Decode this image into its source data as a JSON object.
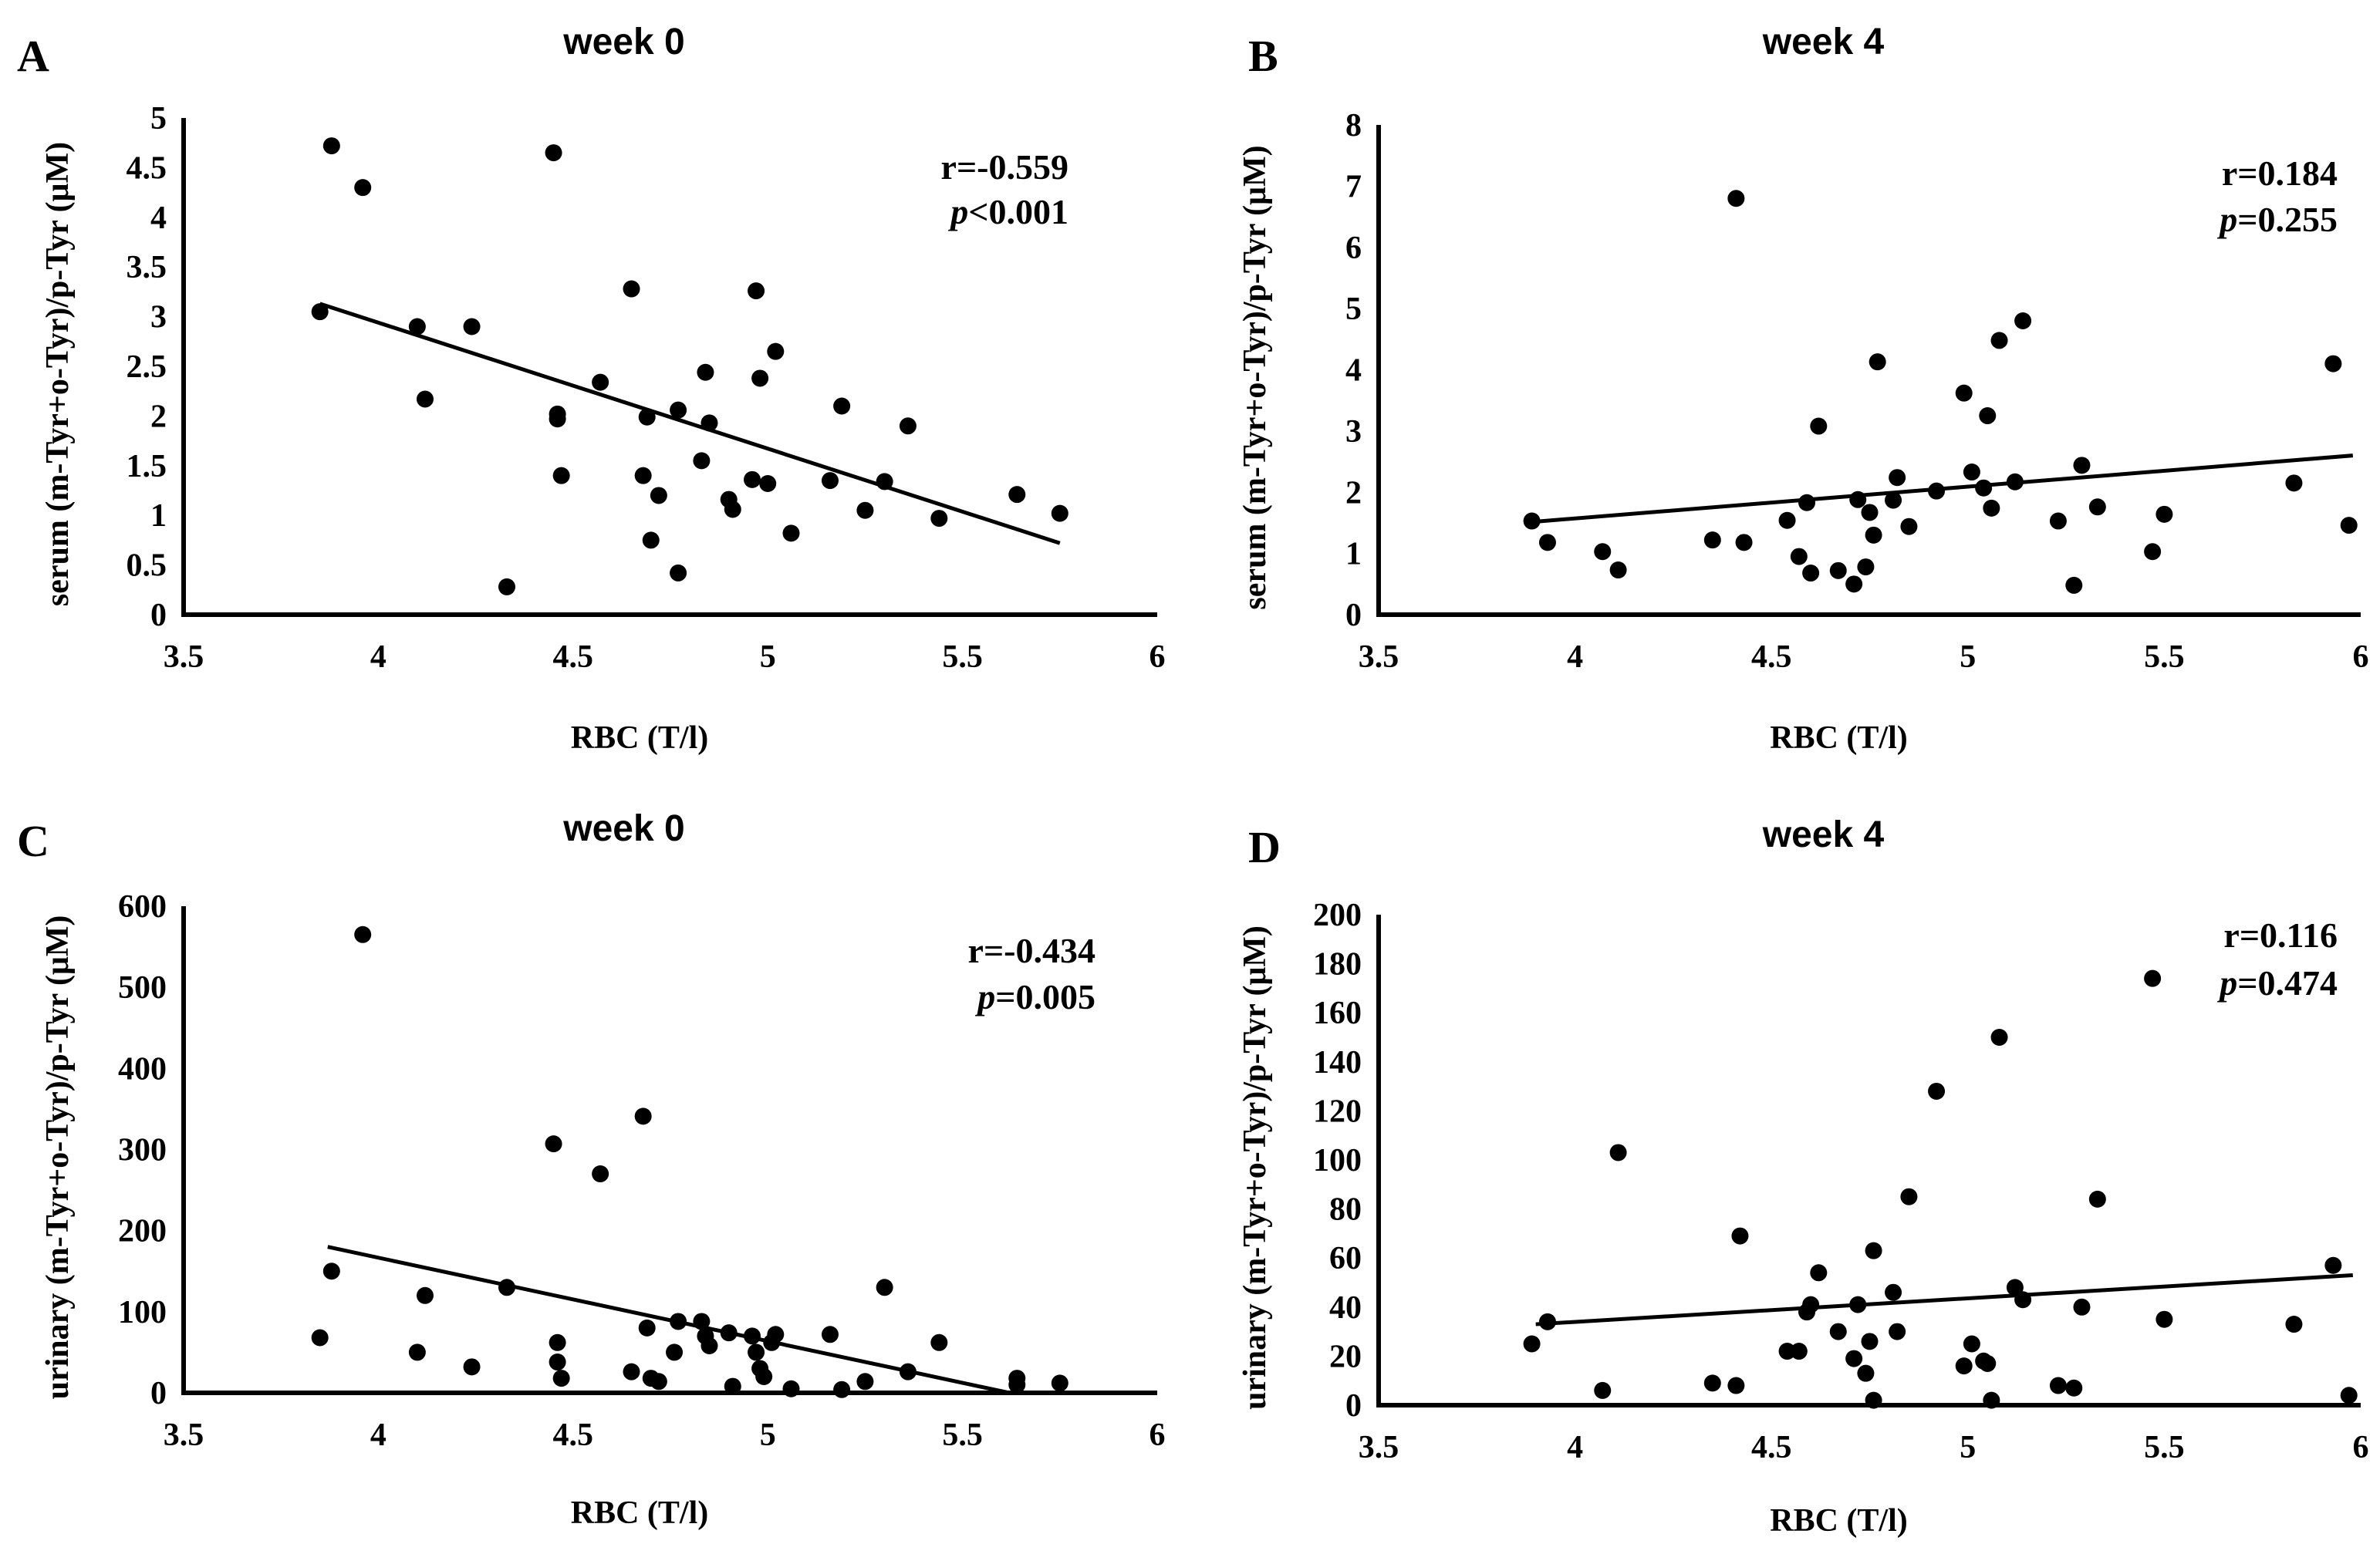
{
  "chart_data": [
    {
      "type": "scatter",
      "panel": "A",
      "title": "week 0",
      "xlabel": "RBC (T/l)",
      "ylabel": "serum (m-Tyr+o-Tyr)/p-Tyr  (μM)",
      "xlim": [
        3.5,
        6
      ],
      "ylim": [
        0,
        5
      ],
      "xticks": [
        "3.5",
        "4",
        "4.5",
        "5",
        "5.5",
        "6"
      ],
      "yticks": [
        "0",
        "0.5",
        "1",
        "1.5",
        "2",
        "2.5",
        "3",
        "3.5",
        "4",
        "4.5",
        "5"
      ],
      "stats": {
        "r_text": "r=-0.559",
        "p_symbol": "p",
        "p_value_text": "<0.001"
      },
      "trendline": {
        "x": [
          3.85,
          5.75
        ],
        "y": [
          3.13,
          0.72
        ]
      },
      "points": [
        {
          "x": 3.85,
          "y": 3.05
        },
        {
          "x": 3.88,
          "y": 4.72
        },
        {
          "x": 3.96,
          "y": 4.3
        },
        {
          "x": 4.1,
          "y": 2.9
        },
        {
          "x": 4.12,
          "y": 2.17
        },
        {
          "x": 4.24,
          "y": 2.9
        },
        {
          "x": 4.33,
          "y": 0.28
        },
        {
          "x": 4.45,
          "y": 4.65
        },
        {
          "x": 4.46,
          "y": 2.02
        },
        {
          "x": 4.46,
          "y": 1.97
        },
        {
          "x": 4.47,
          "y": 1.4
        },
        {
          "x": 4.57,
          "y": 2.34
        },
        {
          "x": 4.65,
          "y": 3.28
        },
        {
          "x": 4.68,
          "y": 1.4
        },
        {
          "x": 4.69,
          "y": 1.99
        },
        {
          "x": 4.7,
          "y": 0.75
        },
        {
          "x": 4.72,
          "y": 1.2
        },
        {
          "x": 4.77,
          "y": 2.06
        },
        {
          "x": 4.77,
          "y": 0.42
        },
        {
          "x": 4.83,
          "y": 1.55
        },
        {
          "x": 4.84,
          "y": 2.44
        },
        {
          "x": 4.85,
          "y": 1.93
        },
        {
          "x": 4.9,
          "y": 1.16
        },
        {
          "x": 4.91,
          "y": 1.06
        },
        {
          "x": 4.96,
          "y": 1.36
        },
        {
          "x": 4.97,
          "y": 3.26
        },
        {
          "x": 4.98,
          "y": 2.38
        },
        {
          "x": 5.0,
          "y": 1.32
        },
        {
          "x": 5.02,
          "y": 2.65
        },
        {
          "x": 5.06,
          "y": 0.82
        },
        {
          "x": 5.16,
          "y": 1.35
        },
        {
          "x": 5.19,
          "y": 2.1
        },
        {
          "x": 5.25,
          "y": 1.05
        },
        {
          "x": 5.3,
          "y": 1.34
        },
        {
          "x": 5.36,
          "y": 1.9
        },
        {
          "x": 5.44,
          "y": 0.97
        },
        {
          "x": 5.64,
          "y": 1.21
        },
        {
          "x": 5.75,
          "y": 1.02
        }
      ]
    },
    {
      "type": "scatter",
      "panel": "B",
      "title": "week 4",
      "xlabel": "RBC (T/l)",
      "ylabel": "serum (m-Tyr+o-Tyr)/p-Tyr  (μM)",
      "xlim": [
        3.5,
        6
      ],
      "ylim": [
        0,
        8
      ],
      "xticks": [
        "3.5",
        "4",
        "4.5",
        "5",
        "5.5",
        "6"
      ],
      "yticks": [
        "0",
        "1",
        "2",
        "3",
        "4",
        "5",
        "6",
        "7",
        "8"
      ],
      "stats": {
        "r_text": "r=0.184",
        "p_symbol": "p",
        "p_value_text": "=0.255"
      },
      "trendline": {
        "x": [
          3.9,
          5.98
        ],
        "y": [
          1.52,
          2.6
        ]
      },
      "points": [
        {
          "x": 3.89,
          "y": 1.53
        },
        {
          "x": 3.93,
          "y": 1.18
        },
        {
          "x": 4.07,
          "y": 1.03
        },
        {
          "x": 4.11,
          "y": 0.73
        },
        {
          "x": 4.35,
          "y": 1.22
        },
        {
          "x": 4.41,
          "y": 6.8
        },
        {
          "x": 4.43,
          "y": 1.18
        },
        {
          "x": 4.54,
          "y": 1.54
        },
        {
          "x": 4.57,
          "y": 0.95
        },
        {
          "x": 4.59,
          "y": 1.83
        },
        {
          "x": 4.6,
          "y": 0.68
        },
        {
          "x": 4.62,
          "y": 3.08
        },
        {
          "x": 4.67,
          "y": 0.72
        },
        {
          "x": 4.71,
          "y": 0.5
        },
        {
          "x": 4.72,
          "y": 1.88
        },
        {
          "x": 4.74,
          "y": 0.78
        },
        {
          "x": 4.75,
          "y": 1.67
        },
        {
          "x": 4.76,
          "y": 1.3
        },
        {
          "x": 4.77,
          "y": 4.13
        },
        {
          "x": 4.81,
          "y": 1.87
        },
        {
          "x": 4.82,
          "y": 2.24
        },
        {
          "x": 4.85,
          "y": 1.44
        },
        {
          "x": 4.92,
          "y": 2.02
        },
        {
          "x": 4.99,
          "y": 3.62
        },
        {
          "x": 5.01,
          "y": 2.33
        },
        {
          "x": 5.04,
          "y": 2.07
        },
        {
          "x": 5.05,
          "y": 3.25
        },
        {
          "x": 5.06,
          "y": 1.74
        },
        {
          "x": 5.08,
          "y": 4.48
        },
        {
          "x": 5.12,
          "y": 2.17
        },
        {
          "x": 5.14,
          "y": 4.8
        },
        {
          "x": 5.23,
          "y": 1.53
        },
        {
          "x": 5.27,
          "y": 0.48
        },
        {
          "x": 5.29,
          "y": 2.44
        },
        {
          "x": 5.33,
          "y": 1.76
        },
        {
          "x": 5.47,
          "y": 1.03
        },
        {
          "x": 5.5,
          "y": 1.64
        },
        {
          "x": 5.83,
          "y": 2.15
        },
        {
          "x": 5.93,
          "y": 4.1
        },
        {
          "x": 5.97,
          "y": 1.46
        }
      ]
    },
    {
      "type": "scatter",
      "panel": "C",
      "title": "week 0",
      "xlabel": "RBC (T/l)",
      "ylabel": "urinary (m-Tyr+o-Tyr)/p-Tyr  (μM)",
      "xlim": [
        3.5,
        6
      ],
      "ylim": [
        0,
        600
      ],
      "xticks": [
        "3.5",
        "4",
        "4.5",
        "5",
        "5.5",
        "6"
      ],
      "yticks": [
        "0",
        "100",
        "200",
        "300",
        "400",
        "500",
        "600"
      ],
      "stats": {
        "r_text": "r=-0.434",
        "p_symbol": "p",
        "p_value_text": "=0.005"
      },
      "trendline": {
        "x": [
          3.87,
          5.62
        ],
        "y": [
          180,
          0
        ]
      },
      "points": [
        {
          "x": 3.85,
          "y": 68
        },
        {
          "x": 3.88,
          "y": 150
        },
        {
          "x": 3.96,
          "y": 565
        },
        {
          "x": 4.1,
          "y": 50
        },
        {
          "x": 4.12,
          "y": 120
        },
        {
          "x": 4.24,
          "y": 32
        },
        {
          "x": 4.33,
          "y": 130
        },
        {
          "x": 4.45,
          "y": 307
        },
        {
          "x": 4.46,
          "y": 62
        },
        {
          "x": 4.46,
          "y": 38
        },
        {
          "x": 4.47,
          "y": 18
        },
        {
          "x": 4.57,
          "y": 270
        },
        {
          "x": 4.65,
          "y": 26
        },
        {
          "x": 4.68,
          "y": 341
        },
        {
          "x": 4.69,
          "y": 80
        },
        {
          "x": 4.7,
          "y": 18
        },
        {
          "x": 4.72,
          "y": 14
        },
        {
          "x": 4.76,
          "y": 50
        },
        {
          "x": 4.77,
          "y": 88
        },
        {
          "x": 4.83,
          "y": 88
        },
        {
          "x": 4.84,
          "y": 70
        },
        {
          "x": 4.85,
          "y": 58
        },
        {
          "x": 4.9,
          "y": 74
        },
        {
          "x": 4.91,
          "y": 8
        },
        {
          "x": 4.96,
          "y": 70
        },
        {
          "x": 4.97,
          "y": 50
        },
        {
          "x": 4.98,
          "y": 30
        },
        {
          "x": 4.99,
          "y": 20
        },
        {
          "x": 5.01,
          "y": 62
        },
        {
          "x": 5.02,
          "y": 72
        },
        {
          "x": 5.06,
          "y": 5
        },
        {
          "x": 5.16,
          "y": 72
        },
        {
          "x": 5.19,
          "y": 4
        },
        {
          "x": 5.25,
          "y": 14
        },
        {
          "x": 5.3,
          "y": 130
        },
        {
          "x": 5.36,
          "y": 26
        },
        {
          "x": 5.44,
          "y": 62
        },
        {
          "x": 5.64,
          "y": 18
        },
        {
          "x": 5.64,
          "y": 10
        },
        {
          "x": 5.75,
          "y": 12
        }
      ]
    },
    {
      "type": "scatter",
      "panel": "D",
      "title": "week 4",
      "xlabel": "RBC (T/l)",
      "ylabel": "urinary (m-Tyr+o-Tyr)/p-Tyr  (μM)",
      "xlim": [
        3.5,
        6
      ],
      "ylim": [
        0,
        200
      ],
      "xticks": [
        "3.5",
        "4",
        "4.5",
        "5",
        "5.5",
        "6"
      ],
      "yticks": [
        "0",
        "20",
        "40",
        "60",
        "80",
        "100",
        "120",
        "140",
        "160",
        "180",
        "200"
      ],
      "stats": {
        "r_text": "r=0.116",
        "p_symbol": "p",
        "p_value_text": "=0.474"
      },
      "trendline": {
        "x": [
          3.9,
          5.98
        ],
        "y": [
          33,
          53
        ]
      },
      "points": [
        {
          "x": 3.89,
          "y": 25
        },
        {
          "x": 3.93,
          "y": 34
        },
        {
          "x": 4.07,
          "y": 6
        },
        {
          "x": 4.11,
          "y": 103
        },
        {
          "x": 4.35,
          "y": 9
        },
        {
          "x": 4.41,
          "y": 8
        },
        {
          "x": 4.42,
          "y": 69
        },
        {
          "x": 4.54,
          "y": 22
        },
        {
          "x": 4.57,
          "y": 22
        },
        {
          "x": 4.59,
          "y": 38
        },
        {
          "x": 4.6,
          "y": 41
        },
        {
          "x": 4.62,
          "y": 54
        },
        {
          "x": 4.67,
          "y": 30
        },
        {
          "x": 4.71,
          "y": 19
        },
        {
          "x": 4.72,
          "y": 41
        },
        {
          "x": 4.74,
          "y": 13
        },
        {
          "x": 4.75,
          "y": 26
        },
        {
          "x": 4.76,
          "y": 2
        },
        {
          "x": 4.76,
          "y": 63
        },
        {
          "x": 4.81,
          "y": 46
        },
        {
          "x": 4.82,
          "y": 30
        },
        {
          "x": 4.85,
          "y": 85
        },
        {
          "x": 4.92,
          "y": 128
        },
        {
          "x": 4.99,
          "y": 16
        },
        {
          "x": 5.01,
          "y": 25
        },
        {
          "x": 5.04,
          "y": 18
        },
        {
          "x": 5.05,
          "y": 17
        },
        {
          "x": 5.06,
          "y": 2
        },
        {
          "x": 5.08,
          "y": 150
        },
        {
          "x": 5.12,
          "y": 48
        },
        {
          "x": 5.14,
          "y": 43
        },
        {
          "x": 5.23,
          "y": 8
        },
        {
          "x": 5.27,
          "y": 7
        },
        {
          "x": 5.29,
          "y": 40
        },
        {
          "x": 5.33,
          "y": 84
        },
        {
          "x": 5.47,
          "y": 174
        },
        {
          "x": 5.5,
          "y": 35
        },
        {
          "x": 5.83,
          "y": 33
        },
        {
          "x": 5.93,
          "y": 57
        },
        {
          "x": 5.97,
          "y": 4
        }
      ]
    }
  ]
}
